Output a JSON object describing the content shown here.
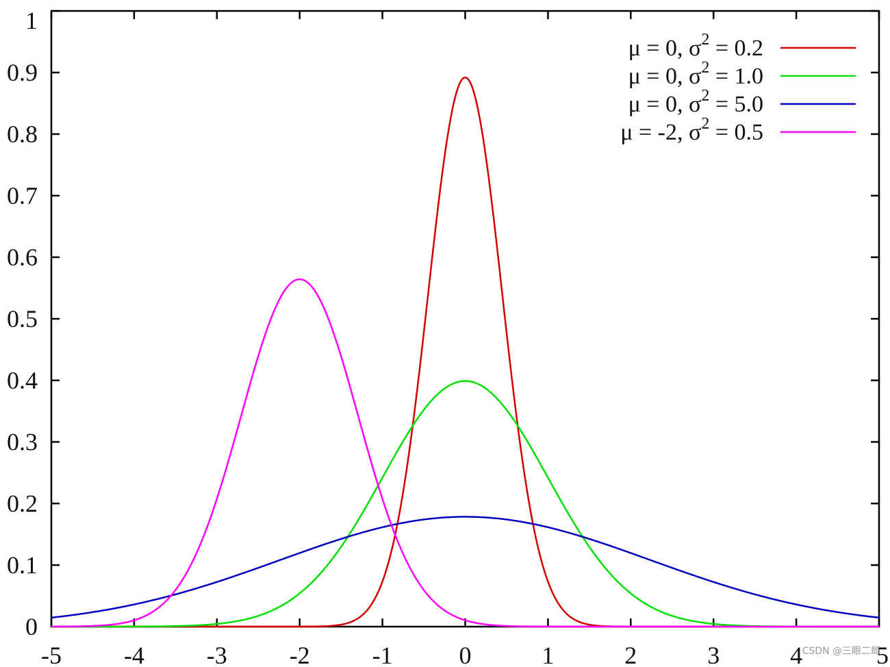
{
  "chart_data": {
    "type": "line",
    "title": "",
    "xlabel": "",
    "ylabel": "",
    "xlim": [
      -5,
      5
    ],
    "ylim": [
      0,
      1
    ],
    "x_ticks": [
      -5,
      -4,
      -3,
      -2,
      -1,
      0,
      1,
      2,
      3,
      4,
      5
    ],
    "y_ticks": [
      0,
      0.1,
      0.2,
      0.3,
      0.4,
      0.5,
      0.6,
      0.7,
      0.8,
      0.9,
      1
    ],
    "x_tick_labels": [
      "-5",
      "-4",
      "-3",
      "-2",
      "-1",
      "0",
      "1",
      "2",
      "3",
      "4",
      "5"
    ],
    "y_tick_labels": [
      "0",
      "0.1",
      "0.2",
      "0.3",
      "0.4",
      "0.5",
      "0.6",
      "0.7",
      "0.8",
      "0.9",
      "1"
    ],
    "grid": false,
    "legend_position": "top-right",
    "series": [
      {
        "legend_mu": "μ =  0, σ",
        "legend_sup": "2",
        "legend_var": " = 0.2",
        "mu": 0,
        "variance": 0.2,
        "color": "#d40000"
      },
      {
        "legend_mu": "μ =  0, σ",
        "legend_sup": "2",
        "legend_var": " = 1.0",
        "mu": 0,
        "variance": 1.0,
        "color": "#00e000"
      },
      {
        "legend_mu": "μ =  0, σ",
        "legend_sup": "2",
        "legend_var": " = 5.0",
        "mu": 0,
        "variance": 5.0,
        "color": "#0000c0"
      },
      {
        "legend_mu": "μ = -2, σ",
        "legend_sup": "2",
        "legend_var": " = 0.5",
        "mu": -2,
        "variance": 0.5,
        "color": "#ff00ff"
      }
    ]
  },
  "watermark": "CSDN @三眼二郎"
}
